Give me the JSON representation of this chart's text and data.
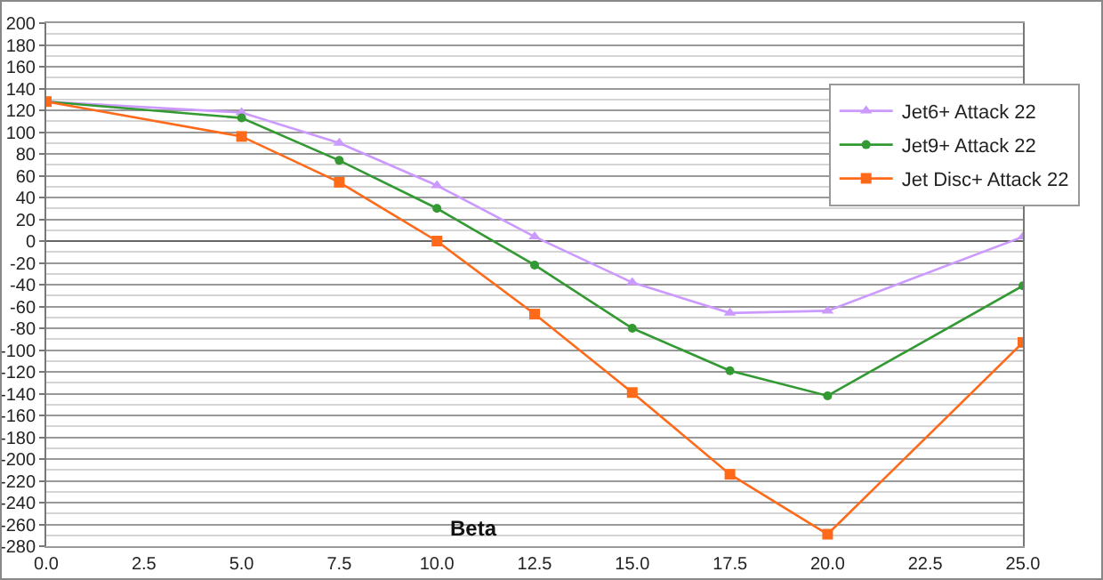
{
  "chart_data": {
    "type": "line",
    "xlabel": "Beta",
    "x": [
      0,
      5,
      7.5,
      10,
      12.5,
      15,
      17.5,
      20,
      25
    ],
    "series": [
      {
        "name": "Jet6+ Attack 22",
        "color": "#cc99ff",
        "marker": "triangle",
        "values": [
          128,
          118,
          90,
          51,
          4,
          -38,
          -66,
          -64,
          4
        ]
      },
      {
        "name": "Jet9+ Attack 22",
        "color": "#339933",
        "marker": "circle",
        "values": [
          128,
          113,
          74,
          30,
          -22,
          -80,
          -119,
          -142,
          -41
        ]
      },
      {
        "name": "Jet Disc+ Attack 22",
        "color": "#ff6a1a",
        "marker": "square",
        "values": [
          128,
          96,
          54,
          0,
          -67,
          -139,
          -214,
          -269,
          -93
        ]
      }
    ],
    "xlim": [
      0,
      25
    ],
    "xticks": [
      {
        "value": 0,
        "label": "0.0"
      },
      2.5,
      {
        "value": 5,
        "label": "5.0"
      },
      7.5,
      {
        "value": 10,
        "label": "10.0"
      },
      12.5,
      {
        "value": 15,
        "label": "15.0"
      },
      17.5,
      {
        "value": 20,
        "label": "20.0"
      },
      22.5,
      {
        "value": 25,
        "label": "25.0"
      }
    ],
    "ylim": [
      -280,
      200
    ],
    "yticks": [
      200,
      180,
      160,
      140,
      120,
      100,
      80,
      60,
      40,
      20,
      0,
      -20,
      -40,
      -60,
      -80,
      -100,
      -120,
      -140,
      -160,
      -180,
      -200,
      -220,
      -240,
      -260,
      -280
    ],
    "grid": "y",
    "legend": "top right"
  }
}
